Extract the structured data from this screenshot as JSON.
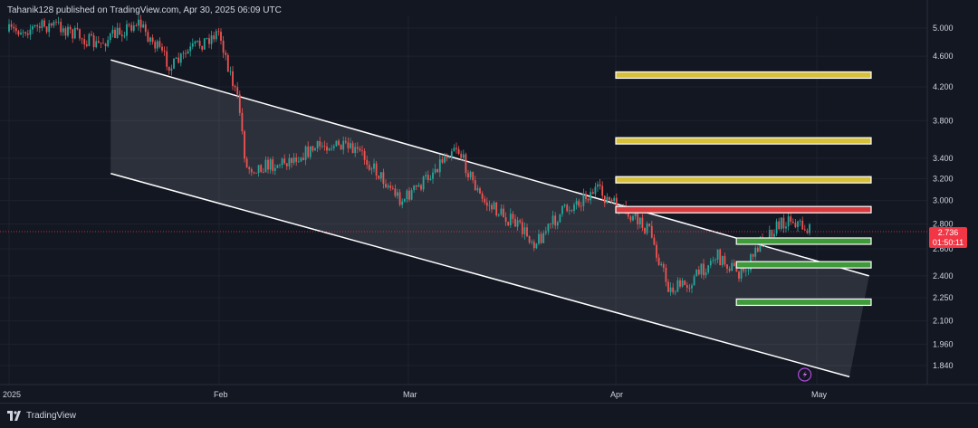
{
  "header": {
    "publisher_text": "Tahanik128 published on TradingView.com, Apr 30, 2025 06:09 UTC"
  },
  "footer": {
    "brand": "TradingView"
  },
  "price_badge": {
    "price": "2.736",
    "countdown": "01:50:11"
  },
  "colors": {
    "background": "#131722",
    "up_candle": "#26a69a",
    "down_candle": "#ef5350",
    "channel_line": "#ffffff",
    "resistance_zone": "#d8c13a",
    "pivot_zone": "#d93a3e",
    "support_zone": "#3f9a3a",
    "current_price": "#f23645"
  },
  "chart_data": {
    "type": "candlestick",
    "title": "",
    "xlabel": "",
    "ylabel": "",
    "x_ticks": [
      "2025",
      "Feb",
      "Mar",
      "Apr",
      "May"
    ],
    "y_ticks": [
      5.0,
      4.6,
      4.2,
      3.8,
      3.4,
      3.2,
      3.0,
      2.8,
      2.6,
      2.4,
      2.25,
      2.1,
      1.96,
      1.84
    ],
    "y_scale": "log",
    "ylim": [
      1.75,
      5.2
    ],
    "current_price": 2.736,
    "price_path": [
      {
        "date": "2025-01-01",
        "price": 4.95
      },
      {
        "date": "2025-01-08",
        "price": 5.05
      },
      {
        "date": "2025-01-14",
        "price": 4.75
      },
      {
        "date": "2025-01-20",
        "price": 5.1
      },
      {
        "date": "2025-01-25",
        "price": 4.45
      },
      {
        "date": "2025-01-28",
        "price": 4.7
      },
      {
        "date": "2025-02-01",
        "price": 4.95
      },
      {
        "date": "2025-02-04",
        "price": 3.95
      },
      {
        "date": "2025-02-05",
        "price": 3.3
      },
      {
        "date": "2025-02-10",
        "price": 3.35
      },
      {
        "date": "2025-02-17",
        "price": 3.55
      },
      {
        "date": "2025-02-22",
        "price": 3.45
      },
      {
        "date": "2025-02-28",
        "price": 3.0
      },
      {
        "date": "2025-03-03",
        "price": 3.15
      },
      {
        "date": "2025-03-08",
        "price": 3.55
      },
      {
        "date": "2025-03-12",
        "price": 3.0
      },
      {
        "date": "2025-03-17",
        "price": 2.8
      },
      {
        "date": "2025-03-20",
        "price": 2.65
      },
      {
        "date": "2025-03-24",
        "price": 2.9
      },
      {
        "date": "2025-03-29",
        "price": 3.1
      },
      {
        "date": "2025-04-02",
        "price": 2.9
      },
      {
        "date": "2025-04-06",
        "price": 2.75
      },
      {
        "date": "2025-04-09",
        "price": 2.3
      },
      {
        "date": "2025-04-12",
        "price": 2.35
      },
      {
        "date": "2025-04-16",
        "price": 2.55
      },
      {
        "date": "2025-04-20",
        "price": 2.4
      },
      {
        "date": "2025-04-23",
        "price": 2.7
      },
      {
        "date": "2025-04-27",
        "price": 2.85
      },
      {
        "date": "2025-04-30",
        "price": 2.736
      }
    ],
    "channel": {
      "upper": [
        {
          "date": "2025-01-16",
          "price": 4.55
        },
        {
          "date": "2025-05-09",
          "price": 2.4
        }
      ],
      "lower": [
        {
          "date": "2025-01-16",
          "price": 3.25
        },
        {
          "date": "2025-05-06",
          "price": 1.78
        }
      ]
    },
    "levels": [
      {
        "role": "resistance",
        "price": 4.35
      },
      {
        "role": "resistance",
        "price": 3.58
      },
      {
        "role": "resistance",
        "price": 3.19
      },
      {
        "role": "pivot",
        "price": 2.92
      },
      {
        "role": "support",
        "price": 2.66
      },
      {
        "role": "support",
        "price": 2.48
      },
      {
        "role": "support",
        "price": 2.22
      }
    ]
  }
}
